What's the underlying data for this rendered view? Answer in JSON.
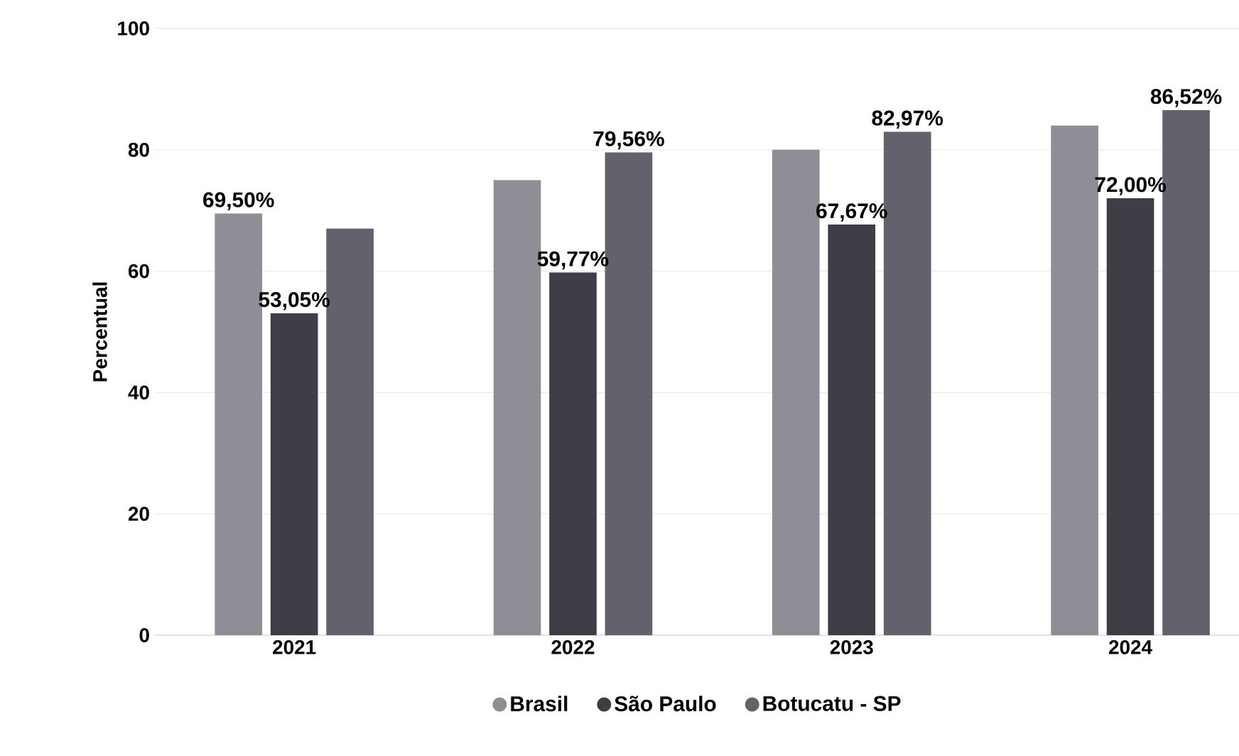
{
  "chart_data": {
    "type": "bar",
    "ylabel": "Percentual",
    "categories": [
      "2021",
      "2022",
      "2023",
      "2024"
    ],
    "series": [
      {
        "name": "Brasil",
        "color": "#8e8e96",
        "values": [
          69.5,
          75,
          80,
          84
        ],
        "value_labels": [
          "69,50%",
          null,
          null,
          null
        ]
      },
      {
        "name": "São Paulo",
        "color": "#3e3e46",
        "values": [
          53.05,
          59.77,
          67.67,
          72.0
        ],
        "value_labels": [
          "53,05%",
          "59,77%",
          "67,67%",
          "72,00%"
        ]
      },
      {
        "name": "Botucatu - SP",
        "color": "#62626c",
        "values": [
          67,
          79.56,
          82.97,
          86.52
        ],
        "value_labels": [
          null,
          "79,56%",
          "82,97%",
          "86,52%"
        ]
      }
    ],
    "ylim": [
      0,
      100
    ],
    "yticks": [
      0,
      20,
      40,
      60,
      80,
      100
    ],
    "grid": "y",
    "legend": "bottom"
  }
}
